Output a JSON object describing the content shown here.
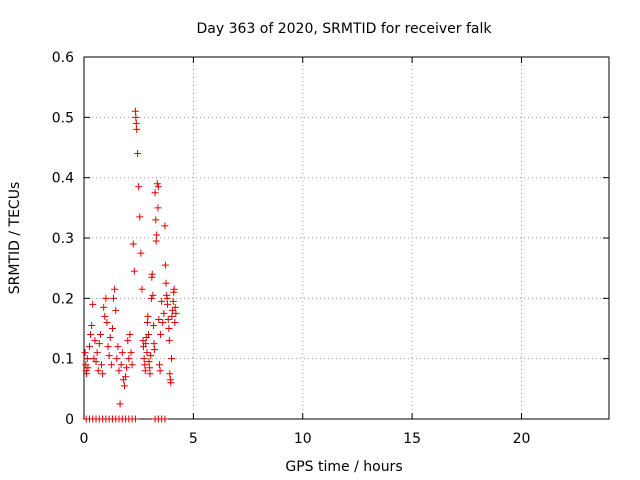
{
  "chart_data": {
    "type": "scatter",
    "title": "Day 363 of 2020, SRMTID for receiver falk",
    "xlabel": "GPS time / hours",
    "ylabel": "SRMTID / TECUs",
    "xlim": [
      0,
      24
    ],
    "ylim": [
      0,
      0.6
    ],
    "xticks": [
      0,
      5,
      10,
      15,
      20
    ],
    "xtick_labels": [
      "0",
      "5",
      "10",
      "15",
      "20"
    ],
    "yticks": [
      0,
      0.1,
      0.2,
      0.3,
      0.4,
      0.5,
      0.6
    ],
    "ytick_labels": [
      "0",
      "0.1",
      "0.2",
      "0.3",
      "0.4",
      "0.5",
      "0.6"
    ],
    "grid": true,
    "marker": "plus",
    "color": "#e00000",
    "series": [
      {
        "name": "SRMTID",
        "points": [
          [
            0.05,
            0.11
          ],
          [
            0.08,
            0.09
          ],
          [
            0.1,
            0.08
          ],
          [
            0.12,
            0.075
          ],
          [
            0.15,
            0.1
          ],
          [
            0.18,
            0.085
          ],
          [
            0.25,
            0.12
          ],
          [
            0.3,
            0.14
          ],
          [
            0.35,
            0.155
          ],
          [
            0.4,
            0.19
          ],
          [
            0.45,
            0.1
          ],
          [
            0.5,
            0.13
          ],
          [
            0.55,
            0.095
          ],
          [
            0.6,
            0.11
          ],
          [
            0.65,
            0.08
          ],
          [
            0.7,
            0.125
          ],
          [
            0.75,
            0.14
          ],
          [
            0.8,
            0.09
          ],
          [
            0.85,
            0.075
          ],
          [
            0.9,
            0.185
          ],
          [
            0.95,
            0.17
          ],
          [
            1.0,
            0.2
          ],
          [
            1.05,
            0.16
          ],
          [
            1.1,
            0.12
          ],
          [
            1.15,
            0.105
          ],
          [
            1.2,
            0.135
          ],
          [
            1.25,
            0.09
          ],
          [
            1.3,
            0.15
          ],
          [
            1.35,
            0.2
          ],
          [
            1.4,
            0.215
          ],
          [
            1.45,
            0.18
          ],
          [
            1.5,
            0.1
          ],
          [
            1.55,
            0.12
          ],
          [
            1.6,
            0.08
          ],
          [
            1.65,
            0.025
          ],
          [
            1.7,
            0.09
          ],
          [
            1.75,
            0.11
          ],
          [
            1.8,
            0.065
          ],
          [
            1.85,
            0.055
          ],
          [
            1.9,
            0.07
          ],
          [
            1.95,
            0.085
          ],
          [
            2.0,
            0.13
          ],
          [
            2.05,
            0.1
          ],
          [
            2.1,
            0.14
          ],
          [
            2.15,
            0.11
          ],
          [
            2.2,
            0.09
          ],
          [
            2.25,
            0.29
          ],
          [
            2.3,
            0.245
          ],
          [
            2.35,
            0.51
          ],
          [
            2.37,
            0.5
          ],
          [
            2.39,
            0.49
          ],
          [
            2.41,
            0.48
          ],
          [
            2.45,
            0.44
          ],
          [
            2.5,
            0.385
          ],
          [
            2.55,
            0.335
          ],
          [
            2.6,
            0.275
          ],
          [
            2.65,
            0.215
          ],
          [
            2.7,
            0.13
          ],
          [
            2.72,
            0.12
          ],
          [
            2.75,
            0.1
          ],
          [
            2.78,
            0.09
          ],
          [
            2.8,
            0.08
          ],
          [
            2.82,
            0.125
          ],
          [
            2.85,
            0.135
          ],
          [
            2.88,
            0.11
          ],
          [
            2.9,
            0.16
          ],
          [
            2.92,
            0.17
          ],
          [
            2.95,
            0.14
          ],
          [
            2.97,
            0.095
          ],
          [
            3.0,
            0.085
          ],
          [
            3.02,
            0.075
          ],
          [
            3.05,
            0.105
          ],
          [
            3.08,
            0.2
          ],
          [
            3.1,
            0.235
          ],
          [
            3.12,
            0.24
          ],
          [
            3.15,
            0.205
          ],
          [
            3.18,
            0.155
          ],
          [
            3.2,
            0.125
          ],
          [
            3.22,
            0.115
          ],
          [
            3.25,
            0.375
          ],
          [
            3.28,
            0.33
          ],
          [
            3.3,
            0.295
          ],
          [
            3.32,
            0.305
          ],
          [
            3.35,
            0.39
          ],
          [
            3.38,
            0.35
          ],
          [
            3.4,
            0.385
          ],
          [
            3.42,
            0.165
          ],
          [
            3.45,
            0.09
          ],
          [
            3.48,
            0.08
          ],
          [
            3.5,
            0.14
          ],
          [
            3.55,
            0.195
          ],
          [
            3.6,
            0.16
          ],
          [
            3.65,
            0.175
          ],
          [
            3.7,
            0.32
          ],
          [
            3.72,
            0.255
          ],
          [
            3.75,
            0.225
          ],
          [
            3.78,
            0.205
          ],
          [
            3.8,
            0.2
          ],
          [
            3.82,
            0.19
          ],
          [
            3.85,
            0.165
          ],
          [
            3.88,
            0.15
          ],
          [
            3.9,
            0.13
          ],
          [
            3.92,
            0.075
          ],
          [
            3.95,
            0.065
          ],
          [
            3.97,
            0.06
          ],
          [
            4.0,
            0.1
          ],
          [
            4.02,
            0.17
          ],
          [
            4.05,
            0.18
          ],
          [
            4.08,
            0.195
          ],
          [
            4.1,
            0.21
          ],
          [
            4.12,
            0.215
          ],
          [
            4.15,
            0.16
          ],
          [
            4.17,
            0.185
          ],
          [
            4.2,
            0.175
          ],
          [
            0.1,
            0.0
          ],
          [
            0.25,
            0.0
          ],
          [
            0.4,
            0.0
          ],
          [
            0.55,
            0.0
          ],
          [
            0.7,
            0.0
          ],
          [
            0.85,
            0.0
          ],
          [
            1.0,
            0.0
          ],
          [
            1.15,
            0.0
          ],
          [
            1.3,
            0.0
          ],
          [
            1.45,
            0.0
          ],
          [
            1.6,
            0.0
          ],
          [
            1.75,
            0.0
          ],
          [
            1.9,
            0.0
          ],
          [
            2.05,
            0.0
          ],
          [
            2.2,
            0.0
          ],
          [
            2.35,
            0.0
          ],
          [
            3.25,
            0.0
          ],
          [
            3.4,
            0.0
          ],
          [
            3.55,
            0.0
          ],
          [
            3.7,
            0.0
          ]
        ]
      }
    ]
  }
}
